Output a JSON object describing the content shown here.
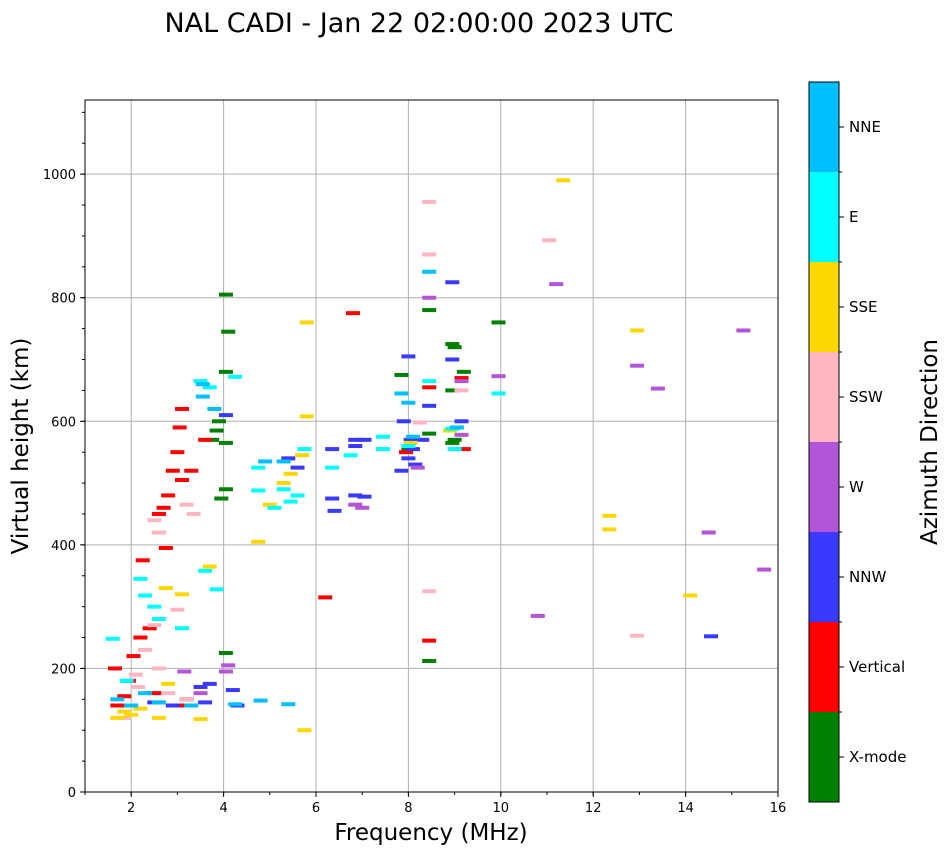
{
  "chart_data": {
    "type": "scatter",
    "title": "NAL CADI - Jan 22 02:00:00 2023 UTC",
    "xlabel": "Frequency (MHz)",
    "ylabel": "Virtual height (km)",
    "xlim": [
      1,
      16
    ],
    "ylim": [
      0,
      1120
    ],
    "x_ticks": [
      "2",
      "4",
      "6",
      "8",
      "10",
      "12",
      "14",
      "16"
    ],
    "y_ticks": [
      "0",
      "200",
      "400",
      "600",
      "800",
      "1000"
    ],
    "grid": true,
    "colorbar": {
      "label": "Azimuth Direction",
      "categories": [
        {
          "name": "X-mode",
          "color": "#008000"
        },
        {
          "name": "Vertical",
          "color": "#ff0000"
        },
        {
          "name": "NNW",
          "color": "#3a3aff"
        },
        {
          "name": "W",
          "color": "#b455d8"
        },
        {
          "name": "SSW",
          "color": "#ffb6c1"
        },
        {
          "name": "SSE",
          "color": "#ffd700"
        },
        {
          "name": "E",
          "color": "#00ffff"
        },
        {
          "name": "NNE",
          "color": "#00bfff"
        }
      ]
    },
    "series": [
      {
        "name": "X-mode",
        "points": [
          [
            4.05,
            805
          ],
          [
            4.1,
            745
          ],
          [
            4.05,
            680
          ],
          [
            3.9,
            600
          ],
          [
            3.85,
            585
          ],
          [
            4.05,
            565
          ],
          [
            4.05,
            490
          ],
          [
            8.45,
            780
          ],
          [
            8.95,
            725
          ],
          [
            9.0,
            720
          ],
          [
            9.2,
            680
          ],
          [
            8.95,
            650
          ],
          [
            9.0,
            570
          ],
          [
            8.95,
            565
          ],
          [
            9.95,
            760
          ],
          [
            8.45,
            580
          ],
          [
            7.85,
            675
          ],
          [
            8.45,
            212
          ],
          [
            4.05,
            225
          ],
          [
            3.95,
            475
          ],
          [
            3.75,
            570
          ],
          [
            8.0,
            555
          ]
        ]
      },
      {
        "name": "Vertical",
        "points": [
          [
            2.25,
            375
          ],
          [
            3.1,
            620
          ],
          [
            3.05,
            590
          ],
          [
            3.0,
            550
          ],
          [
            2.9,
            520
          ],
          [
            2.8,
            480
          ],
          [
            2.6,
            450
          ],
          [
            2.7,
            460
          ],
          [
            3.1,
            505
          ],
          [
            2.75,
            395
          ],
          [
            2.2,
            250
          ],
          [
            2.05,
            220
          ],
          [
            1.95,
            180
          ],
          [
            1.85,
            155
          ],
          [
            1.7,
            140
          ],
          [
            2.5,
            160
          ],
          [
            3.1,
            140
          ],
          [
            3.6,
            570
          ],
          [
            6.2,
            315
          ],
          [
            6.8,
            775
          ],
          [
            8.45,
            245
          ],
          [
            8.45,
            655
          ],
          [
            9.2,
            555
          ],
          [
            9.15,
            670
          ],
          [
            7.95,
            550
          ],
          [
            3.3,
            520
          ],
          [
            2.4,
            265
          ],
          [
            1.65,
            200
          ]
        ]
      },
      {
        "name": "NNW",
        "points": [
          [
            2.5,
            145
          ],
          [
            2.9,
            140
          ],
          [
            3.2,
            150
          ],
          [
            3.5,
            170
          ],
          [
            3.7,
            175
          ],
          [
            4.2,
            165
          ],
          [
            3.6,
            145
          ],
          [
            4.3,
            140
          ],
          [
            5.4,
            540
          ],
          [
            5.6,
            525
          ],
          [
            6.35,
            555
          ],
          [
            6.35,
            475
          ],
          [
            6.4,
            455
          ],
          [
            6.85,
            570
          ],
          [
            6.85,
            560
          ],
          [
            7.05,
            570
          ],
          [
            6.85,
            480
          ],
          [
            7.05,
            478
          ],
          [
            7.9,
            600
          ],
          [
            8.05,
            570
          ],
          [
            8.1,
            555
          ],
          [
            8.3,
            570
          ],
          [
            8.0,
            540
          ],
          [
            7.85,
            520
          ],
          [
            8.0,
            705
          ],
          [
            8.95,
            825
          ],
          [
            8.95,
            700
          ],
          [
            8.45,
            625
          ],
          [
            9.15,
            600
          ],
          [
            14.55,
            252
          ],
          [
            8.15,
            530
          ],
          [
            4.05,
            610
          ]
        ]
      },
      {
        "name": "W",
        "points": [
          [
            3.15,
            195
          ],
          [
            3.5,
            160
          ],
          [
            4.1,
            205
          ],
          [
            6.85,
            465
          ],
          [
            7.0,
            460
          ],
          [
            8.2,
            525
          ],
          [
            8.45,
            800
          ],
          [
            9.15,
            665
          ],
          [
            9.15,
            578
          ],
          [
            9.95,
            673
          ],
          [
            11.2,
            822
          ],
          [
            12.95,
            690
          ],
          [
            13.4,
            653
          ],
          [
            14.5,
            420
          ],
          [
            15.7,
            360
          ],
          [
            10.8,
            285
          ],
          [
            15.25,
            747
          ],
          [
            4.05,
            195
          ]
        ]
      },
      {
        "name": "SSW",
        "points": [
          [
            2.1,
            190
          ],
          [
            2.3,
            230
          ],
          [
            2.5,
            270
          ],
          [
            2.6,
            200
          ],
          [
            2.8,
            160
          ],
          [
            3.0,
            295
          ],
          [
            3.1,
            265
          ],
          [
            3.2,
            150
          ],
          [
            2.5,
            440
          ],
          [
            2.6,
            420
          ],
          [
            3.2,
            465
          ],
          [
            3.35,
            450
          ],
          [
            8.45,
            955
          ],
          [
            8.45,
            870
          ],
          [
            8.45,
            325
          ],
          [
            11.05,
            893
          ],
          [
            12.95,
            253
          ],
          [
            9.15,
            650
          ],
          [
            8.25,
            598
          ],
          [
            1.85,
            120
          ],
          [
            2.15,
            170
          ]
        ]
      },
      {
        "name": "SSE",
        "points": [
          [
            1.7,
            120
          ],
          [
            1.85,
            130
          ],
          [
            2.0,
            125
          ],
          [
            2.2,
            135
          ],
          [
            2.6,
            120
          ],
          [
            2.8,
            175
          ],
          [
            3.1,
            320
          ],
          [
            3.5,
            118
          ],
          [
            3.7,
            365
          ],
          [
            4.75,
            405
          ],
          [
            5.0,
            465
          ],
          [
            5.3,
            500
          ],
          [
            5.45,
            515
          ],
          [
            5.7,
            545
          ],
          [
            5.8,
            760
          ],
          [
            5.8,
            608
          ],
          [
            5.75,
            100
          ],
          [
            11.35,
            990
          ],
          [
            12.35,
            447
          ],
          [
            12.35,
            425
          ],
          [
            12.95,
            747
          ],
          [
            14.1,
            318
          ],
          [
            2.75,
            330
          ],
          [
            8.05,
            565
          ],
          [
            8.9,
            585
          ]
        ]
      },
      {
        "name": "E",
        "points": [
          [
            1.6,
            248
          ],
          [
            1.9,
            180
          ],
          [
            2.2,
            345
          ],
          [
            2.3,
            318
          ],
          [
            2.5,
            300
          ],
          [
            2.6,
            280
          ],
          [
            3.6,
            358
          ],
          [
            3.5,
            665
          ],
          [
            3.7,
            655
          ],
          [
            4.25,
            672
          ],
          [
            4.75,
            525
          ],
          [
            4.75,
            488
          ],
          [
            5.1,
            460
          ],
          [
            5.3,
            490
          ],
          [
            5.45,
            470
          ],
          [
            5.6,
            480
          ],
          [
            5.75,
            555
          ],
          [
            6.35,
            525
          ],
          [
            6.75,
            545
          ],
          [
            7.45,
            575
          ],
          [
            7.45,
            555
          ],
          [
            7.85,
            645
          ],
          [
            8.0,
            560
          ],
          [
            8.45,
            665
          ],
          [
            8.95,
            588
          ],
          [
            9.95,
            645
          ],
          [
            3.85,
            328
          ],
          [
            3.1,
            265
          ],
          [
            9.0,
            555
          ]
        ]
      },
      {
        "name": "NNE",
        "points": [
          [
            1.7,
            150
          ],
          [
            2.0,
            140
          ],
          [
            2.3,
            160
          ],
          [
            2.6,
            145
          ],
          [
            3.3,
            140
          ],
          [
            4.8,
            148
          ],
          [
            5.4,
            142
          ],
          [
            4.25,
            142
          ],
          [
            3.55,
            660
          ],
          [
            3.55,
            640
          ],
          [
            8.45,
            842
          ],
          [
            7.85,
            645
          ],
          [
            8.1,
            575
          ],
          [
            9.05,
            590
          ],
          [
            4.9,
            535
          ],
          [
            5.3,
            535
          ],
          [
            3.8,
            620
          ],
          [
            8.0,
            630
          ]
        ]
      }
    ]
  }
}
